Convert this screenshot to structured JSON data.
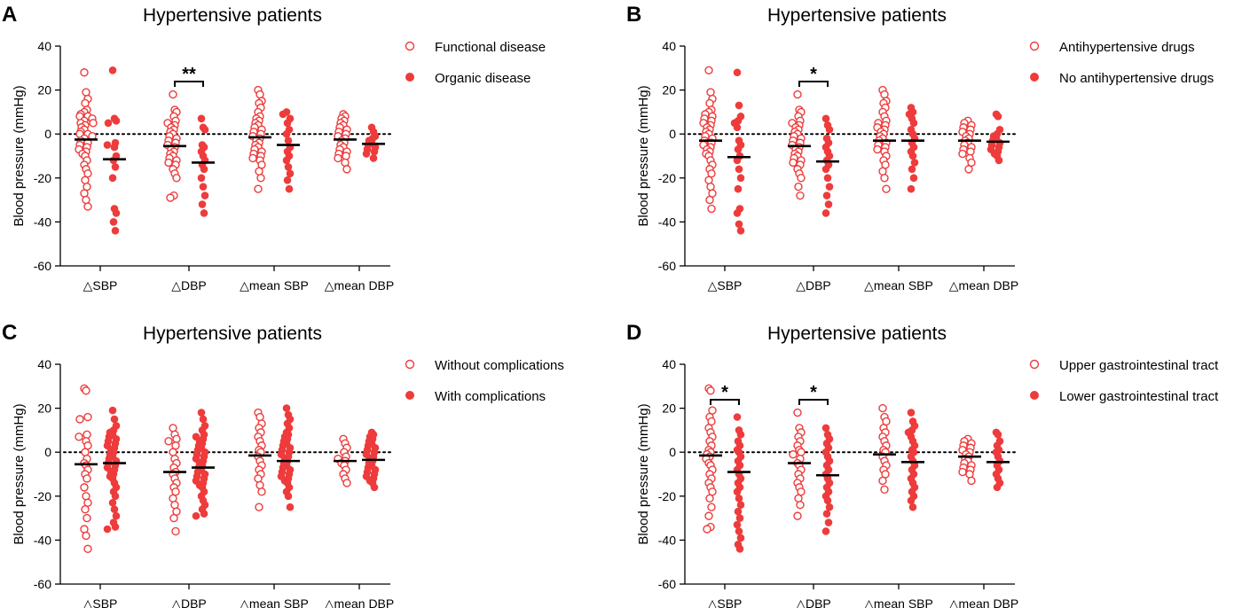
{
  "colors": {
    "series": "#ee3b3b",
    "axis": "#000000",
    "mean_bar": "#000000"
  },
  "chart_data": [
    {
      "panel": "A",
      "type": "scatter",
      "title": "Hypertensive patients",
      "ylabel": "Blood pressure (mmHg)",
      "ylim": [
        -60,
        40
      ],
      "yticks": [
        {
          "value": 40,
          "label": "40"
        },
        {
          "value": 20,
          "label": "20"
        },
        {
          "value": 0,
          "label": "0"
        },
        {
          "value": -20,
          "label": "-20"
        },
        {
          "value": -40,
          "label": "-40"
        },
        {
          "value": -60,
          "label": "-60"
        }
      ],
      "categories": [
        "△SBP",
        "△DBP",
        "△mean SBP",
        "△mean DBP"
      ],
      "series": [
        {
          "name": "Functional disease",
          "marker": "open",
          "means": [
            -2.5,
            -5.5,
            -1.5,
            -2.5
          ],
          "values": [
            [
              28,
              19,
              16,
              14,
              11,
              10,
              9,
              8,
              8,
              7,
              6,
              5,
              5,
              4,
              3,
              2,
              1,
              0,
              0,
              -1,
              -2,
              -3,
              -4,
              -5,
              -6,
              -7,
              -8,
              -9,
              -10,
              -12,
              -14,
              -16,
              -18,
              -21,
              -24,
              -27,
              -30,
              -33
            ],
            [
              18,
              11,
              10,
              8,
              6,
              5,
              4,
              3,
              2,
              1,
              0,
              -1,
              -2,
              -3,
              -4,
              -5,
              -6,
              -7,
              -8,
              -9,
              -10,
              -11,
              -12,
              -13,
              -14,
              -16,
              -18,
              -20,
              -28,
              -29
            ],
            [
              20,
              18,
              15,
              14,
              12,
              10,
              8,
              7,
              6,
              5,
              4,
              3,
              2,
              1,
              0,
              -1,
              -2,
              -3,
              -4,
              -5,
              -6,
              -7,
              -8,
              -9,
              -10,
              -11,
              -12,
              -14,
              -17,
              -20,
              -25
            ],
            [
              9,
              8,
              7,
              6,
              5,
              4,
              3,
              2,
              1,
              0,
              -1,
              -2,
              -3,
              -4,
              -5,
              -6,
              -7,
              -8,
              -9,
              -10,
              -11,
              -13,
              -16
            ]
          ]
        },
        {
          "name": "Organic disease",
          "marker": "filled",
          "means": [
            -11.5,
            -13,
            -5,
            -4.5
          ],
          "values": [
            [
              29,
              7,
              6,
              5,
              -4,
              -5,
              -6,
              -10,
              -12,
              -15,
              -20,
              -34,
              -36,
              -40,
              -44
            ],
            [
              7,
              3,
              2,
              -5,
              -6,
              -8,
              -10,
              -12,
              -14,
              -16,
              -20,
              -24,
              -28,
              -32,
              -36
            ],
            [
              10,
              9,
              7,
              5,
              2,
              0,
              -3,
              -6,
              -8,
              -10,
              -12,
              -15,
              -18,
              -21,
              -25
            ],
            [
              3,
              1,
              -1,
              -2,
              -3,
              -4,
              -5,
              -6,
              -7,
              -8,
              -9,
              -11
            ]
          ]
        }
      ],
      "significance": [
        {
          "category_index": 1,
          "label": "**"
        }
      ]
    },
    {
      "panel": "B",
      "type": "scatter",
      "title": "Hypertensive patients",
      "ylabel": "Blood pressure (mmHg)",
      "ylim": [
        -60,
        40
      ],
      "yticks": [
        {
          "value": 40,
          "label": "40"
        },
        {
          "value": 20,
          "label": "20"
        },
        {
          "value": 0,
          "label": "0"
        },
        {
          "value": -20,
          "label": "-20"
        },
        {
          "value": -40,
          "label": "-40"
        },
        {
          "value": -60,
          "label": "-60"
        }
      ],
      "categories": [
        "△SBP",
        "△DBP",
        "△mean SBP",
        "△mean DBP"
      ],
      "series": [
        {
          "name": "Antihypertensive drugs",
          "marker": "open",
          "means": [
            -3,
            -5.5,
            -3,
            -3
          ],
          "values": [
            [
              29,
              19,
              16,
              14,
              11,
              10,
              9,
              8,
              7,
              6,
              5,
              4,
              3,
              2,
              1,
              0,
              -1,
              -2,
              -3,
              -4,
              -5,
              -6,
              -7,
              -8,
              -9,
              -10,
              -12,
              -14,
              -16,
              -18,
              -21,
              -24,
              -27,
              -30,
              -34
            ],
            [
              18,
              11,
              10,
              8,
              6,
              5,
              4,
              3,
              2,
              1,
              0,
              -1,
              -2,
              -3,
              -4,
              -5,
              -6,
              -7,
              -8,
              -9,
              -10,
              -11,
              -12,
              -13,
              -14,
              -16,
              -18,
              -20,
              -24,
              -28
            ],
            [
              20,
              18,
              15,
              14,
              12,
              10,
              8,
              6,
              5,
              4,
              3,
              2,
              1,
              0,
              -1,
              -2,
              -3,
              -4,
              -5,
              -6,
              -7,
              -8,
              -10,
              -12,
              -14,
              -17,
              -20,
              -25
            ],
            [
              6,
              5,
              4,
              3,
              2,
              1,
              0,
              -1,
              -2,
              -3,
              -4,
              -5,
              -6,
              -7,
              -8,
              -9,
              -11,
              -13,
              -16
            ]
          ]
        },
        {
          "name": "No antihypertensive drugs",
          "marker": "filled",
          "means": [
            -10.5,
            -12.5,
            -3,
            -3.5
          ],
          "values": [
            [
              28,
              13,
              8,
              6,
              5,
              3,
              -3,
              -5,
              -7,
              -10,
              -12,
              -16,
              -20,
              -25,
              -34,
              -36,
              -41,
              -44
            ],
            [
              7,
              4,
              2,
              -2,
              -4,
              -6,
              -8,
              -10,
              -12,
              -14,
              -16,
              -20,
              -24,
              -28,
              -32,
              -36
            ],
            [
              12,
              10,
              9,
              7,
              5,
              2,
              0,
              -2,
              -4,
              -6,
              -8,
              -10,
              -13,
              -16,
              -20,
              -25
            ],
            [
              9,
              8,
              2,
              0,
              -1,
              -2,
              -3,
              -4,
              -5,
              -6,
              -7,
              -8,
              -9,
              -10,
              -12
            ]
          ]
        }
      ],
      "significance": [
        {
          "category_index": 1,
          "label": "*"
        }
      ]
    },
    {
      "panel": "C",
      "type": "scatter",
      "title": "Hypertensive patients",
      "ylabel": "Blood pressure (mmHg)",
      "ylim": [
        -60,
        40
      ],
      "yticks": [
        {
          "value": 40,
          "label": "40"
        },
        {
          "value": 20,
          "label": "20"
        },
        {
          "value": 0,
          "label": "0"
        },
        {
          "value": -20,
          "label": "-20"
        },
        {
          "value": -40,
          "label": "-40"
        },
        {
          "value": -60,
          "label": "-60"
        }
      ],
      "categories": [
        "△SBP",
        "△DBP",
        "△mean SBP",
        "△mean DBP"
      ],
      "series": [
        {
          "name": "Without complications",
          "marker": "open",
          "means": [
            -5.5,
            -9,
            -1.5,
            -4
          ],
          "values": [
            [
              29,
              28,
              16,
              15,
              8,
              7,
              5,
              3,
              0,
              -3,
              -5,
              -6,
              -8,
              -10,
              -12,
              -16,
              -20,
              -23,
              -26,
              -30,
              -35,
              -38,
              -44
            ],
            [
              11,
              8,
              6,
              5,
              3,
              0,
              -3,
              -5,
              -7,
              -9,
              -10,
              -12,
              -14,
              -16,
              -18,
              -21,
              -24,
              -27,
              -30,
              -36
            ],
            [
              18,
              16,
              13,
              11,
              9,
              7,
              5,
              3,
              1,
              0,
              -2,
              -4,
              -6,
              -8,
              -10,
              -12,
              -15,
              -18,
              -25
            ],
            [
              6,
              4,
              2,
              0,
              -2,
              -3,
              -4,
              -5,
              -6,
              -8,
              -10,
              -12,
              -14
            ]
          ]
        },
        {
          "name": "With complications",
          "marker": "filled",
          "means": [
            -5,
            -7,
            -4,
            -3.5
          ],
          "values": [
            [
              19,
              15,
              12,
              10,
              9,
              8,
              7,
              6,
              5,
              4,
              3,
              2,
              1,
              0,
              -1,
              -2,
              -3,
              -4,
              -5,
              -6,
              -7,
              -8,
              -9,
              -10,
              -11,
              -12,
              -14,
              -16,
              -18,
              -20,
              -23,
              -26,
              -29,
              -32,
              -34,
              -35
            ],
            [
              18,
              15,
              12,
              10,
              8,
              7,
              6,
              5,
              4,
              3,
              2,
              1,
              0,
              -1,
              -2,
              -3,
              -4,
              -5,
              -6,
              -7,
              -8,
              -9,
              -10,
              -11,
              -12,
              -13,
              -14,
              -15,
              -16,
              -18,
              -20,
              -22,
              -24,
              -26,
              -28,
              -29
            ],
            [
              20,
              17,
              15,
              13,
              11,
              9,
              8,
              7,
              6,
              5,
              4,
              3,
              2,
              1,
              0,
              -1,
              -2,
              -3,
              -4,
              -5,
              -6,
              -7,
              -8,
              -9,
              -10,
              -11,
              -12,
              -13,
              -14,
              -16,
              -18,
              -20,
              -25
            ],
            [
              9,
              8,
              7,
              6,
              5,
              4,
              3,
              2,
              1,
              0,
              -1,
              -2,
              -3,
              -4,
              -5,
              -6,
              -7,
              -8,
              -9,
              -10,
              -11,
              -12,
              -13,
              -14,
              -16
            ]
          ]
        }
      ],
      "significance": []
    },
    {
      "panel": "D",
      "type": "scatter",
      "title": "Hypertensive patients",
      "ylabel": "Blood pressure (mmHg)",
      "ylim": [
        -60,
        40
      ],
      "yticks": [
        {
          "value": 40,
          "label": "40"
        },
        {
          "value": 20,
          "label": "20"
        },
        {
          "value": 0,
          "label": "0"
        },
        {
          "value": -20,
          "label": "-20"
        },
        {
          "value": -40,
          "label": "-40"
        },
        {
          "value": -60,
          "label": "-60"
        }
      ],
      "categories": [
        "△SBP",
        "△DBP",
        "△mean SBP",
        "△mean DBP"
      ],
      "series": [
        {
          "name": "Upper gastrointestinal tract",
          "marker": "open",
          "means": [
            -1.5,
            -5,
            -1,
            -2
          ],
          "values": [
            [
              29,
              28,
              19,
              16,
              14,
              11,
              9,
              7,
              5,
              3,
              1,
              0,
              -1,
              -2,
              -3,
              -5,
              -6,
              -8,
              -10,
              -12,
              -14,
              -16,
              -18,
              -21,
              -25,
              -29,
              -34,
              -35
            ],
            [
              18,
              11,
              9,
              7,
              5,
              3,
              1,
              0,
              -1,
              -3,
              -5,
              -6,
              -8,
              -10,
              -12,
              -14,
              -16,
              -18,
              -21,
              -24,
              -29
            ],
            [
              20,
              16,
              14,
              11,
              9,
              7,
              5,
              3,
              1,
              0,
              -2,
              -4,
              -6,
              -8,
              -10,
              -13,
              -17
            ],
            [
              6,
              5,
              4,
              3,
              2,
              1,
              0,
              -1,
              -2,
              -3,
              -4,
              -5,
              -6,
              -7,
              -8,
              -9,
              -10,
              -13
            ]
          ]
        },
        {
          "name": "Lower gastrointestinal tract",
          "marker": "filled",
          "means": [
            -9,
            -10.5,
            -4.5,
            -4.5
          ],
          "values": [
            [
              16,
              10,
              8,
              5,
              3,
              1,
              0,
              -2,
              -4,
              -6,
              -8,
              -10,
              -12,
              -14,
              -16,
              -18,
              -21,
              -24,
              -27,
              -30,
              -33,
              -36,
              -39,
              -42,
              -44
            ],
            [
              11,
              8,
              6,
              4,
              2,
              0,
              -2,
              -4,
              -6,
              -8,
              -10,
              -12,
              -14,
              -16,
              -18,
              -20,
              -22,
              -25,
              -28,
              -32,
              -36
            ],
            [
              18,
              14,
              12,
              10,
              9,
              7,
              5,
              3,
              1,
              0,
              -2,
              -4,
              -6,
              -8,
              -10,
              -12,
              -14,
              -16,
              -18,
              -20,
              -22,
              -25
            ],
            [
              9,
              8,
              5,
              3,
              1,
              0,
              -2,
              -4,
              -6,
              -8,
              -10,
              -12,
              -14,
              -16
            ]
          ]
        }
      ],
      "significance": [
        {
          "category_index": 0,
          "label": "*"
        },
        {
          "category_index": 1,
          "label": "*"
        }
      ]
    }
  ]
}
